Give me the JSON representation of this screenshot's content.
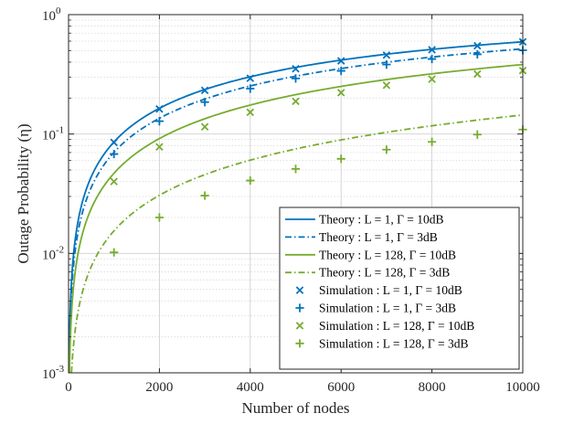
{
  "chart_data": {
    "type": "line",
    "xlabel": "Number of nodes",
    "ylabel": "Outage Probability (η)",
    "xlim": [
      0,
      10000
    ],
    "ylim": [
      0.001,
      1
    ],
    "yscale": "log",
    "grid": true,
    "legend_position": "bottom-right",
    "x_ticks": [
      {
        "value": 0,
        "label": "0"
      },
      {
        "value": 2000,
        "label": "2000"
      },
      {
        "value": 4000,
        "label": "4000"
      },
      {
        "value": 6000,
        "label": "6000"
      },
      {
        "value": 8000,
        "label": "8000"
      },
      {
        "value": 10000,
        "label": "10000"
      }
    ],
    "y_ticks": [
      {
        "value": 0.001,
        "base": "10",
        "exp": "-3"
      },
      {
        "value": 0.01,
        "base": "10",
        "exp": "-2"
      },
      {
        "value": 0.1,
        "base": "10",
        "exp": "-1"
      },
      {
        "value": 1,
        "base": "10",
        "exp": "0"
      }
    ],
    "series": [
      {
        "name": "Theory : L =  1, Γ = 10dB",
        "kind": "line",
        "style": "solid",
        "color": "#0072BD",
        "fn": {
          "a": 9e-05,
          "c": 0.997
        }
      },
      {
        "name": "Theory : L =  1, Γ = 3dB",
        "kind": "line",
        "style": "dashdot",
        "color": "#0072BD",
        "fn": {
          "a": 7.3e-05,
          "c": 0.997
        }
      },
      {
        "name": "Theory : L =  128, Γ = 10dB",
        "kind": "line",
        "style": "solid",
        "color": "#77AC30",
        "fn": {
          "a": 4.78e-05,
          "c": 1.005
        }
      },
      {
        "name": "Theory : L =  128, Γ = 3dB",
        "kind": "line",
        "style": "dashdot",
        "color": "#77AC30",
        "fn": {
          "a": 1.55e-05,
          "c": 1.005
        }
      },
      {
        "name": "Simulation : L = 1, Γ = 10dB",
        "kind": "scatter",
        "marker": "x",
        "color": "#0072BD",
        "x": [
          1000,
          2000,
          3000,
          4000,
          5000,
          6000,
          7000,
          8000,
          9000,
          10000
        ],
        "y": [
          0.085,
          0.162,
          0.232,
          0.293,
          0.352,
          0.41,
          0.458,
          0.508,
          0.548,
          0.592
        ]
      },
      {
        "name": "Simulation : L = 1, Γ = 3dB",
        "kind": "scatter",
        "marker": "+",
        "color": "#0072BD",
        "x": [
          1000,
          2000,
          3000,
          4000,
          5000,
          6000,
          7000,
          8000,
          9000,
          10000
        ],
        "y": [
          0.068,
          0.128,
          0.185,
          0.24,
          0.292,
          0.338,
          0.382,
          0.425,
          0.465,
          0.503
        ]
      },
      {
        "name": "Simulation : L = 128, Γ = 10dB",
        "kind": "scatter",
        "marker": "x",
        "color": "#77AC30",
        "x": [
          1000,
          2000,
          3000,
          4000,
          5000,
          6000,
          7000,
          8000,
          9000,
          10000
        ],
        "y": [
          0.04,
          0.078,
          0.115,
          0.152,
          0.188,
          0.222,
          0.256,
          0.288,
          0.318,
          0.34
        ]
      },
      {
        "name": "Simulation : L = 128, Γ = 3dB",
        "kind": "scatter",
        "marker": "+",
        "color": "#77AC30",
        "x": [
          1000,
          2000,
          3000,
          4000,
          5000,
          6000,
          7000,
          8000,
          9000,
          10000
        ],
        "y": [
          0.0102,
          0.02,
          0.0305,
          0.0408,
          0.051,
          0.062,
          0.074,
          0.086,
          0.099,
          0.109
        ]
      }
    ]
  }
}
